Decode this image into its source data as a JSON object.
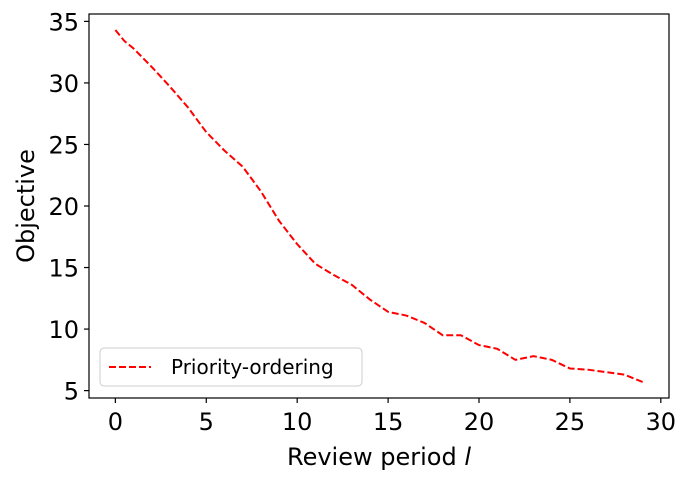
{
  "chart_data": {
    "type": "line",
    "title": "",
    "xlabel": "Review period",
    "xlabel_italic_var": "l",
    "ylabel": "Objective",
    "xlim": [
      -1.45,
      30.45
    ],
    "ylim": [
      4.4,
      35.6
    ],
    "xticks": [
      0,
      5,
      10,
      15,
      20,
      25,
      30
    ],
    "yticks": [
      5,
      10,
      15,
      20,
      25,
      30,
      35
    ],
    "grid": false,
    "legend_position": "lower-left",
    "series": [
      {
        "name": "Priority-ordering",
        "color": "#ff0000",
        "line_style": "dashed",
        "x": [
          0,
          0.5,
          1,
          2,
          3,
          4,
          5,
          6,
          7,
          8,
          9,
          10,
          11,
          12,
          13,
          14,
          15,
          16,
          17,
          18,
          19,
          20,
          21,
          22,
          23,
          24,
          25,
          26,
          27,
          28,
          29
        ],
        "y": [
          34.3,
          33.4,
          32.8,
          31.3,
          29.7,
          28.0,
          26.0,
          24.5,
          23.2,
          21.2,
          18.8,
          16.9,
          15.3,
          14.4,
          13.6,
          12.4,
          11.4,
          11.1,
          10.5,
          9.5,
          9.5,
          8.7,
          8.4,
          7.5,
          7.8,
          7.5,
          6.8,
          6.7,
          6.5,
          6.3,
          5.7
        ]
      }
    ]
  }
}
